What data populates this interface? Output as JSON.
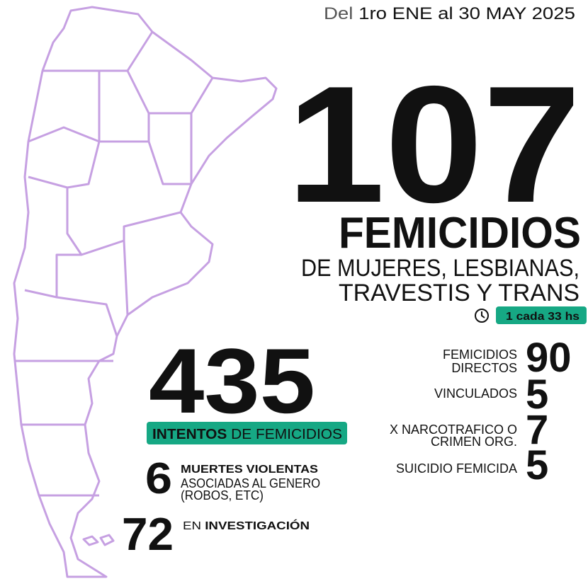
{
  "header": {
    "date_prefix": "Del",
    "date_range": "1ro ENE al 30 MAY 2025"
  },
  "main": {
    "number": 107,
    "title": "FEMICIDIOS",
    "subtitle_lines": [
      "DE MUJERES, LESBIANAS,",
      "TRAVESTIS Y TRANS"
    ],
    "rate": "1 cada 33 hs"
  },
  "attempts": {
    "number": 435,
    "label_bold": "INTENTOS",
    "label_rest": "DE FEMICIDIOS"
  },
  "violent_deaths": {
    "number": 6,
    "lines": [
      "MUERTES VIOLENTAS",
      "ASOCIADAS AL GENERO",
      "(ROBOS, ETC)"
    ]
  },
  "investigation": {
    "number": 72,
    "label_prefix": "EN",
    "label_bold": "INVESTIGACIÓN"
  },
  "breakdown": [
    {
      "lines": [
        "FEMICIDIOS",
        "DIRECTOS"
      ],
      "value": 90
    },
    {
      "lines": [
        "VINCULADOS"
      ],
      "value": 5
    },
    {
      "lines": [
        "X NARCOTRAFICO O",
        "CRIMEN ORG."
      ],
      "value": 7
    },
    {
      "lines": [
        "SUICIDIO FEMICIDA"
      ],
      "value": 5
    }
  ]
}
